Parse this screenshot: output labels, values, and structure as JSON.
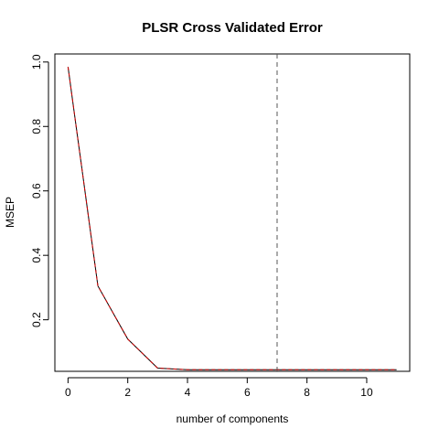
{
  "chart_data": {
    "type": "line",
    "title": "PLSR Cross Validated Error",
    "xlabel": "number of components",
    "ylabel": "MSEP",
    "xlim": [
      -0.44,
      11.44
    ],
    "ylim": [
      0.04,
      1.025
    ],
    "x_ticks": [
      0,
      2,
      4,
      6,
      8,
      10
    ],
    "y_ticks": [
      0.2,
      0.4,
      0.6,
      0.8,
      1.0
    ],
    "x_tick_labels": [
      "0",
      "2",
      "4",
      "6",
      "8",
      "10"
    ],
    "y_tick_labels": [
      "0.2",
      "0.4",
      "0.6",
      "0.8",
      "1.0"
    ],
    "grid": false,
    "series": [
      {
        "style": "solid",
        "color": "#000000",
        "x": [
          0,
          1,
          2,
          3,
          4,
          5,
          6,
          7,
          8,
          9,
          10,
          11
        ],
        "values": [
          0.985,
          0.305,
          0.14,
          0.05,
          0.045,
          0.045,
          0.045,
          0.045,
          0.045,
          0.045,
          0.045,
          0.045
        ]
      },
      {
        "style": "dashed",
        "color": "#cc0000",
        "x": [
          0,
          1,
          2,
          3,
          4,
          5,
          6,
          7,
          8,
          9,
          10,
          11
        ],
        "values": [
          0.985,
          0.305,
          0.14,
          0.05,
          0.045,
          0.045,
          0.045,
          0.045,
          0.045,
          0.045,
          0.045,
          0.045
        ]
      }
    ],
    "reference_line": {
      "orientation": "vertical",
      "x": 7,
      "style": "dashed",
      "color": "#555555"
    }
  }
}
